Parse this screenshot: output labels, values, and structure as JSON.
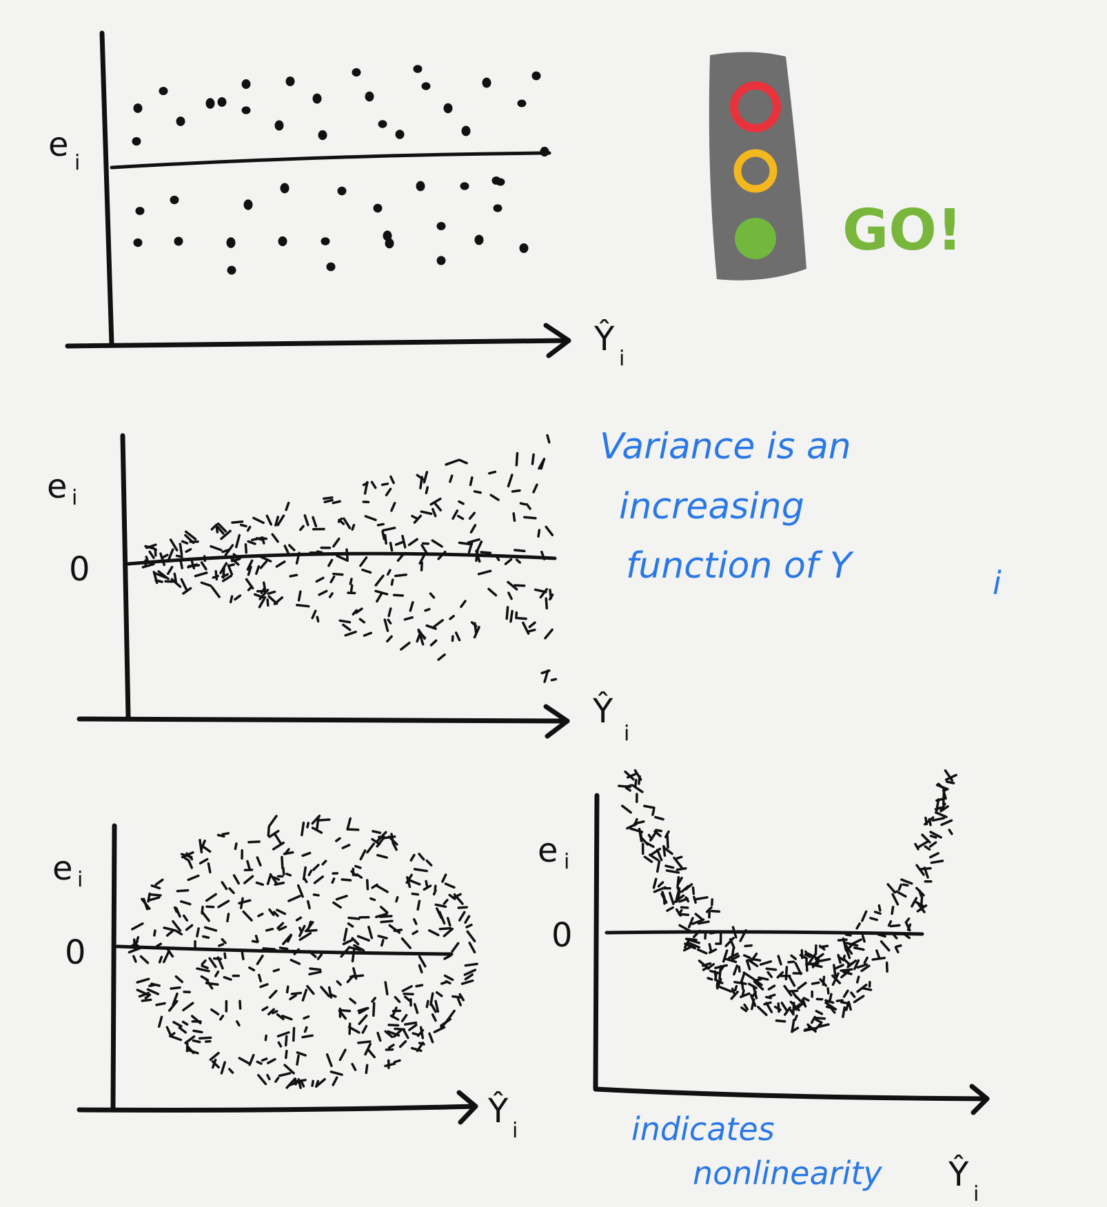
{
  "panels": [
    {
      "id": "constant-variance",
      "y_axis_label": "e",
      "y_axis_sub": "i",
      "zero_label": "",
      "x_axis_label": "Ŷ",
      "x_axis_sub": "i"
    },
    {
      "id": "increasing-variance",
      "y_axis_label": "e",
      "y_axis_sub": "i",
      "zero_label": "0",
      "x_axis_label": "Ŷ",
      "x_axis_sub": "i"
    },
    {
      "id": "ellipse",
      "y_axis_label": "e",
      "y_axis_sub": "i",
      "zero_label": "0",
      "x_axis_label": "Ŷ",
      "x_axis_sub": "i"
    },
    {
      "id": "nonlinear",
      "y_axis_label": "e",
      "y_axis_sub": "i",
      "zero_label": "0",
      "x_axis_label": "Ŷ",
      "x_axis_sub": "i"
    }
  ],
  "traffic_light": {
    "label": "GO!",
    "colors": {
      "body": "#6e6e6e",
      "red": "#e8323c",
      "yellow": "#f3b820",
      "green": "#72b83e",
      "go_text": "#78b63c"
    }
  },
  "notes": {
    "variance_line1": "Variance is an",
    "variance_line2": "increasing",
    "variance_line3": "function of Y",
    "variance_sub": "i",
    "nonlinear_line1": "indicates",
    "nonlinear_line2": "nonlinearity"
  },
  "colors": {
    "ink": "#111111",
    "note": "#2a78e6",
    "background": "#f3f3f2"
  }
}
